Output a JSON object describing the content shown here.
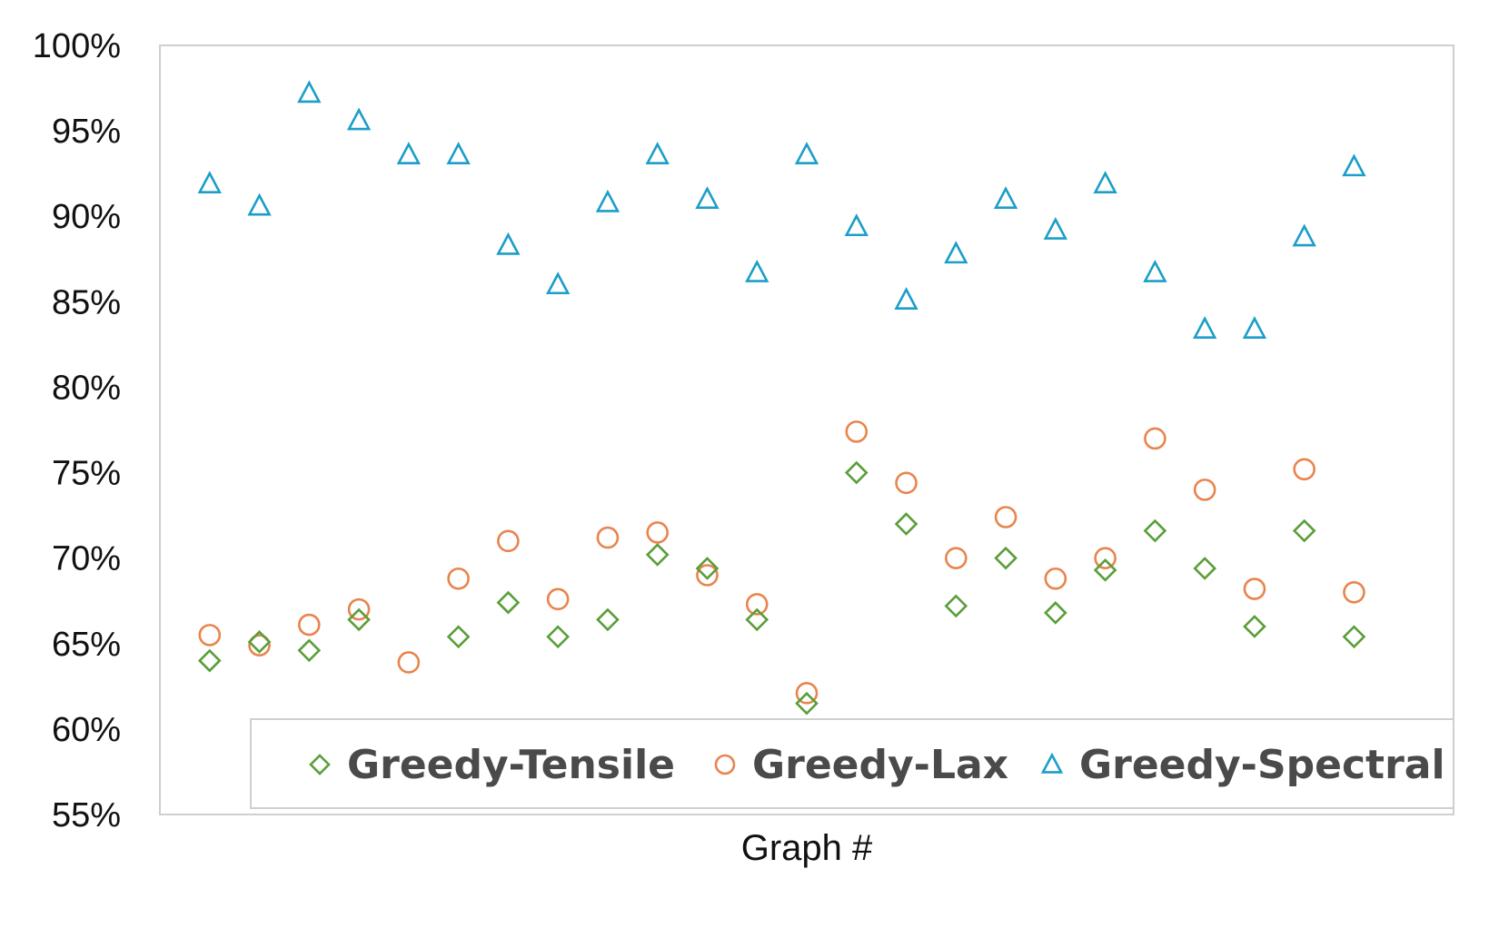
{
  "chart_data": {
    "type": "scatter",
    "xlabel": "Graph #",
    "ylabel": "",
    "ylim": [
      0.55,
      1.0
    ],
    "yticks": [
      "100%",
      "95%",
      "90%",
      "85%",
      "80%",
      "75%",
      "70%",
      "65%",
      "60%",
      "55%"
    ],
    "ytick_values": [
      1.0,
      0.95,
      0.9,
      0.85,
      0.8,
      0.75,
      0.7,
      0.65,
      0.6,
      0.55
    ],
    "x": [
      1,
      2,
      3,
      4,
      5,
      6,
      7,
      8,
      9,
      10,
      11,
      12,
      13,
      14,
      15,
      16,
      17,
      18,
      19,
      20,
      21,
      22,
      23,
      24,
      25
    ],
    "xlim": [
      0,
      26
    ],
    "grid": false,
    "legend_position": "bottom",
    "series": [
      {
        "name": "Greedy-Tensile",
        "marker": "diamond",
        "color": "#5a9e3a",
        "values": [
          0.64,
          0.651,
          0.646,
          0.664,
          null,
          0.654,
          0.674,
          0.654,
          0.664,
          0.702,
          0.694,
          0.664,
          0.615,
          0.75,
          0.72,
          0.672,
          0.7,
          0.668,
          0.693,
          0.716,
          0.694,
          0.66,
          0.716,
          0.654,
          null
        ]
      },
      {
        "name": "Greedy-Lax",
        "marker": "circle",
        "color": "#e9844d",
        "values": [
          0.655,
          0.649,
          0.661,
          0.67,
          0.639,
          0.688,
          0.71,
          0.676,
          0.712,
          0.715,
          0.69,
          0.673,
          0.621,
          0.774,
          0.744,
          0.7,
          0.724,
          0.688,
          0.7,
          0.77,
          0.74,
          0.682,
          0.752,
          0.68,
          null
        ]
      },
      {
        "name": "Greedy-Spectral",
        "marker": "triangle",
        "color": "#1b9ec8",
        "values": [
          0.919,
          0.906,
          0.972,
          0.956,
          0.936,
          0.936,
          0.883,
          0.86,
          0.908,
          0.936,
          0.91,
          0.867,
          0.936,
          0.894,
          0.851,
          0.878,
          0.91,
          0.892,
          0.919,
          0.867,
          0.834,
          0.834,
          0.888,
          0.929,
          null
        ]
      }
    ]
  }
}
